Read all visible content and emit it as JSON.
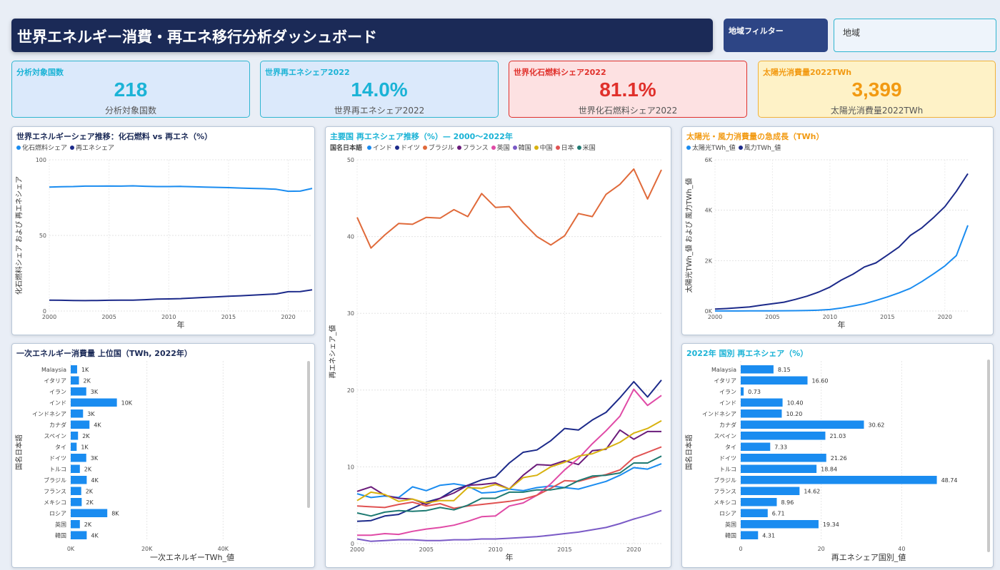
{
  "header": {
    "title": "世界エネルギー消費・再エネ移行分析ダッシュボード",
    "filter_label": "地域フィルター",
    "slicer_placeholder": "地域"
  },
  "cards": [
    {
      "title": "分析対象国数",
      "value": "218",
      "subtitle": "分析対象国数",
      "color": "#1bb3d6",
      "bg": "#dbe9fb",
      "border": "#2fb5d0"
    },
    {
      "title": "世界再エネシェア2022",
      "value": "14.0%",
      "subtitle": "世界再エネシェア2022",
      "color": "#1bb3d6",
      "bg": "#dbe9fb",
      "border": "#2fb5d0"
    },
    {
      "title": "世界化石燃料シェア2022",
      "value": "81.1%",
      "subtitle": "世界化石燃料シェア2022",
      "color": "#e0302b",
      "bg": "#fde1e2",
      "border": "#e0302b"
    },
    {
      "title": "太陽光消費量2022TWh",
      "value": "3,399",
      "subtitle": "太陽光消費量2022TWh",
      "color": "#f29a12",
      "bg": "#fef2c7",
      "border": "#f0b23a"
    }
  ],
  "panels": {
    "share_trend": {
      "title": "世界エネルギーシェア推移：化石燃料 vs 再エネ（%）",
      "title_color": "#1b2a57"
    },
    "renew_trend": {
      "title": "主要国 再エネシェア推移（%）— 2000〜2022年",
      "title_color": "#1bb3d6",
      "legend_header": "国名日本語"
    },
    "solar_wind": {
      "title": "太陽光・風力消費量の急成長（TWh）",
      "title_color": "#f29a12"
    },
    "primary_energy": {
      "title": "一次エネルギー消費量 上位国（TWh, 2022年）",
      "title_color": "#1b2a57"
    },
    "renew_share_2022": {
      "title": "2022年 国別 再エネシェア（%）",
      "title_color": "#1bb3d6"
    }
  },
  "chart_data": [
    {
      "id": "share_trend",
      "type": "line",
      "xlabel": "年",
      "ylabel": "化石燃料シェア および 再エネシェア",
      "xlim": [
        2000,
        2022
      ],
      "ylim": [
        0,
        100
      ],
      "xticks": [
        "2000",
        "2005",
        "2010",
        "2015",
        "2020"
      ],
      "yticks": [
        "0",
        "50",
        "100"
      ],
      "x": [
        2000,
        2001,
        2002,
        2003,
        2004,
        2005,
        2006,
        2007,
        2008,
        2009,
        2010,
        2011,
        2012,
        2013,
        2014,
        2015,
        2016,
        2017,
        2018,
        2019,
        2020,
        2021,
        2022
      ],
      "series": [
        {
          "name": "化石燃料シェア",
          "color": "#1a8cf0",
          "values": [
            82.0,
            82.2,
            82.3,
            82.6,
            82.6,
            82.7,
            82.6,
            82.8,
            82.5,
            82.3,
            82.3,
            82.4,
            82.2,
            82.0,
            81.8,
            81.6,
            81.3,
            81.1,
            80.9,
            80.5,
            79.2,
            79.3,
            81.1
          ]
        },
        {
          "name": "再エネシェア",
          "color": "#1c2a8a",
          "values": [
            7.2,
            7.1,
            7.0,
            6.9,
            7.0,
            7.1,
            7.2,
            7.2,
            7.5,
            7.9,
            8.0,
            8.2,
            8.6,
            9.0,
            9.4,
            9.8,
            10.1,
            10.5,
            10.9,
            11.3,
            12.8,
            12.9,
            14.0
          ]
        }
      ]
    },
    {
      "id": "renew_trend",
      "type": "line",
      "xlabel": "年",
      "ylabel": "再エネシェア_値",
      "xlim": [
        2000,
        2022
      ],
      "ylim": [
        0,
        50
      ],
      "xticks": [
        "2000",
        "2005",
        "2010",
        "2015",
        "2020"
      ],
      "yticks": [
        "0",
        "10",
        "20",
        "30",
        "40",
        "50"
      ],
      "x": [
        2000,
        2001,
        2002,
        2003,
        2004,
        2005,
        2006,
        2007,
        2008,
        2009,
        2010,
        2011,
        2012,
        2013,
        2014,
        2015,
        2016,
        2017,
        2018,
        2019,
        2020,
        2021,
        2022
      ],
      "series": [
        {
          "name": "インド",
          "color": "#1a8cf0",
          "values": [
            6.5,
            6.0,
            6.2,
            6.0,
            7.4,
            6.9,
            7.6,
            7.8,
            7.5,
            6.6,
            6.7,
            7.1,
            6.9,
            7.3,
            7.5,
            7.3,
            7.1,
            7.6,
            8.1,
            8.9,
            9.9,
            9.7,
            10.4
          ]
        },
        {
          "name": "ドイツ",
          "color": "#1c2a8a",
          "values": [
            2.9,
            3.0,
            3.6,
            3.8,
            4.6,
            5.4,
            5.9,
            7.0,
            7.6,
            8.3,
            8.7,
            10.5,
            11.9,
            12.2,
            13.4,
            15.0,
            14.8,
            16.1,
            17.1,
            19.0,
            21.1,
            19.1,
            21.3
          ]
        },
        {
          "name": "ブラジル",
          "color": "#e06a3a",
          "values": [
            42.5,
            38.5,
            40.2,
            41.7,
            41.6,
            42.5,
            42.4,
            43.5,
            42.6,
            45.6,
            43.8,
            43.9,
            41.8,
            40.0,
            38.9,
            40.1,
            43.0,
            42.6,
            45.5,
            46.8,
            48.8,
            44.9,
            48.7
          ]
        },
        {
          "name": "フランス",
          "color": "#6a1b7a",
          "values": [
            6.8,
            7.4,
            6.3,
            5.9,
            5.8,
            5.1,
            5.9,
            6.6,
            7.6,
            7.7,
            7.9,
            7.1,
            8.9,
            10.3,
            10.2,
            10.8,
            10.3,
            12.1,
            12.3,
            14.8,
            13.6,
            14.6,
            14.6
          ]
        },
        {
          "name": "英国",
          "color": "#e04aa6",
          "values": [
            1.1,
            1.1,
            1.3,
            1.2,
            1.6,
            1.9,
            2.1,
            2.4,
            2.9,
            3.5,
            3.6,
            4.9,
            5.3,
            6.3,
            7.8,
            9.6,
            11.1,
            13.0,
            14.7,
            16.6,
            20.1,
            18.0,
            19.3
          ]
        },
        {
          "name": "韓国",
          "color": "#7a5ac6",
          "values": [
            0.6,
            0.3,
            0.4,
            0.5,
            0.5,
            0.4,
            0.4,
            0.5,
            0.5,
            0.6,
            0.6,
            0.7,
            0.8,
            0.9,
            1.1,
            1.3,
            1.5,
            1.8,
            2.1,
            2.6,
            3.2,
            3.7,
            4.3
          ]
        },
        {
          "name": "中国",
          "color": "#d8b20f",
          "values": [
            5.6,
            6.7,
            6.4,
            5.5,
            5.8,
            5.3,
            5.6,
            5.6,
            7.3,
            7.2,
            7.7,
            7.1,
            8.6,
            8.9,
            10.0,
            10.6,
            11.4,
            11.7,
            12.4,
            13.2,
            14.4,
            15.0,
            16.0
          ]
        },
        {
          "name": "日本",
          "color": "#e05252",
          "values": [
            4.9,
            4.8,
            4.7,
            5.1,
            5.4,
            4.9,
            5.2,
            4.6,
            4.9,
            5.1,
            5.3,
            5.5,
            5.8,
            6.3,
            7.2,
            8.2,
            8.1,
            8.6,
            9.0,
            9.6,
            11.2,
            11.9,
            12.6
          ]
        },
        {
          "name": "米国",
          "color": "#1d7a72",
          "values": [
            4.0,
            3.6,
            4.1,
            4.3,
            4.2,
            4.3,
            4.7,
            4.4,
            5.0,
            5.9,
            5.9,
            6.7,
            6.7,
            7.0,
            7.0,
            7.3,
            8.2,
            8.8,
            8.9,
            9.2,
            10.5,
            10.5,
            11.4
          ]
        }
      ]
    },
    {
      "id": "solar_wind",
      "type": "line",
      "xlabel": "年",
      "ylabel": "太陽光TWh_値 および 風力TWh_値",
      "xlim": [
        2000,
        2022
      ],
      "ylim": [
        0,
        6000
      ],
      "xticks": [
        "2000",
        "2005",
        "2010",
        "2015",
        "2020"
      ],
      "yticks": [
        "0K",
        "2K",
        "4K",
        "6K"
      ],
      "x": [
        2000,
        2001,
        2002,
        2003,
        2004,
        2005,
        2006,
        2007,
        2008,
        2009,
        2010,
        2011,
        2012,
        2013,
        2014,
        2015,
        2016,
        2017,
        2018,
        2019,
        2020,
        2021,
        2022
      ],
      "series": [
        {
          "name": "太陽光TWh_値",
          "color": "#1a8cf0",
          "values": [
            3,
            3,
            4,
            5,
            6,
            8,
            10,
            15,
            22,
            35,
            60,
            120,
            200,
            290,
            420,
            560,
            720,
            900,
            1170,
            1470,
            1790,
            2200,
            3399
          ]
        },
        {
          "name": "風力TWh_値",
          "color": "#1c2a8a",
          "values": [
            80,
            100,
            130,
            160,
            230,
            290,
            350,
            460,
            590,
            750,
            950,
            1230,
            1460,
            1750,
            1910,
            2220,
            2540,
            3000,
            3300,
            3700,
            4140,
            4750,
            5450
          ]
        }
      ]
    },
    {
      "id": "primary_energy",
      "type": "bar",
      "orientation": "horizontal",
      "xlabel": "一次エネルギーTWh_値",
      "ylabel": "国名日本語",
      "xlim": [
        0,
        50000
      ],
      "xticks": [
        "0K",
        "20K",
        "40K"
      ],
      "color": "#1a8cf0",
      "categories": [
        "Malaysia",
        "イタリア",
        "イラン",
        "インド",
        "インドネシア",
        "カナダ",
        "スペイン",
        "タイ",
        "ドイツ",
        "トルコ",
        "ブラジル",
        "フランス",
        "メキシコ",
        "ロシア",
        "英国",
        "韓国"
      ],
      "values": [
        1400,
        1800,
        3400,
        10100,
        2700,
        4100,
        1600,
        1300,
        3400,
        2000,
        3500,
        2300,
        2400,
        8000,
        2000,
        3500
      ],
      "labels": [
        "1K",
        "2K",
        "3K",
        "10K",
        "3K",
        "4K",
        "2K",
        "1K",
        "3K",
        "2K",
        "4K",
        "2K",
        "2K",
        "8K",
        "2K",
        "4K"
      ]
    },
    {
      "id": "renew_share_2022",
      "type": "bar",
      "orientation": "horizontal",
      "xlabel": "再エネシェア国別_値",
      "ylabel": "国名日本語",
      "xlim": [
        0,
        60
      ],
      "xticks": [
        "0",
        "20",
        "40"
      ],
      "color": "#1a8cf0",
      "categories": [
        "Malaysia",
        "イタリア",
        "イラン",
        "インド",
        "インドネシア",
        "カナダ",
        "スペイン",
        "タイ",
        "ドイツ",
        "トルコ",
        "ブラジル",
        "フランス",
        "メキシコ",
        "ロシア",
        "英国",
        "韓国"
      ],
      "values": [
        8.15,
        16.6,
        0.73,
        10.4,
        10.2,
        30.62,
        21.03,
        7.33,
        21.26,
        18.84,
        48.74,
        14.62,
        8.96,
        6.71,
        19.34,
        4.31
      ],
      "labels": [
        "8.15",
        "16.60",
        "0.73",
        "10.40",
        "10.20",
        "30.62",
        "21.03",
        "7.33",
        "21.26",
        "18.84",
        "48.74",
        "14.62",
        "8.96",
        "6.71",
        "19.34",
        "4.31"
      ]
    }
  ]
}
